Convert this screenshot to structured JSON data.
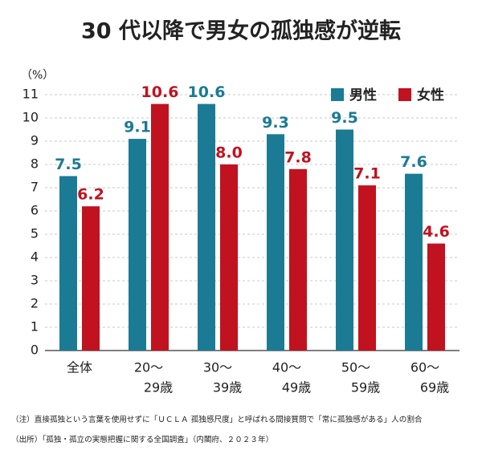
{
  "chart_data": {
    "type": "bar",
    "title": "30 代以降で男女の孤独感が逆転",
    "y_label": "（%）",
    "categories": [
      [
        "全体"
      ],
      [
        "20〜",
        "29歳"
      ],
      [
        "30〜",
        "39歳"
      ],
      [
        "40〜",
        "49歳"
      ],
      [
        "50〜",
        "59歳"
      ],
      [
        "60〜",
        "69歳"
      ]
    ],
    "series": [
      {
        "name": "男性",
        "color": "#1b7b95",
        "values": [
          7.5,
          9.1,
          10.6,
          9.3,
          9.5,
          7.6
        ],
        "value_labels": [
          "7.5",
          "9.1",
          "10.6",
          "9.3",
          "9.5",
          "7.6"
        ]
      },
      {
        "name": "女性",
        "color": "#c1121f",
        "values": [
          6.2,
          10.6,
          8.0,
          7.8,
          7.1,
          4.6
        ],
        "value_labels": [
          "6.2",
          "10.6",
          "8.0",
          "7.8",
          "7.1",
          "4.6"
        ]
      }
    ],
    "ylim": [
      0,
      11
    ],
    "yticks": [
      0,
      1,
      2,
      3,
      4,
      5,
      6,
      7,
      8,
      9,
      10,
      11
    ],
    "grid": true,
    "legend": "top-right",
    "notes": [
      "（注）直接孤独という言葉を使用せずに「ＵＣＬＡ 孤独感尺度」と呼ばれる間接質問で「常に孤独感がある」人の割合",
      "（出所）「孤独・孤立の実態把握に関する全国調査」（内閣府、２０２３年）"
    ]
  }
}
